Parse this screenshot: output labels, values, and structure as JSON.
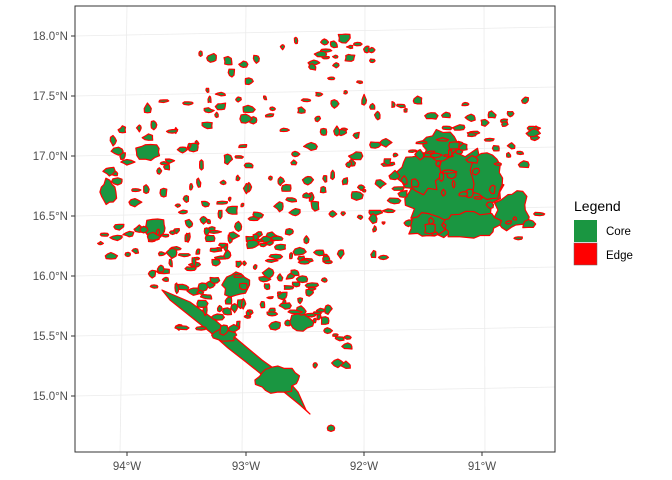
{
  "map": {
    "x_axis": {
      "ticks": [
        "94°W",
        "93°W",
        "92°W",
        "91°W"
      ]
    },
    "y_axis": {
      "ticks": [
        "18.0°N",
        "17.5°N",
        "17.0°N",
        "16.5°N",
        "16.0°N",
        "15.5°N",
        "15.0°N"
      ]
    },
    "legend": {
      "title": "Legend",
      "items": [
        {
          "label": "Core",
          "color": "#1a9641"
        },
        {
          "label": "Edge",
          "color": "#ff0000"
        }
      ]
    },
    "colors": {
      "core": "#1a9641",
      "edge": "#ff0000",
      "panel_border": "#333333",
      "grid": "#ebebeb"
    }
  }
}
